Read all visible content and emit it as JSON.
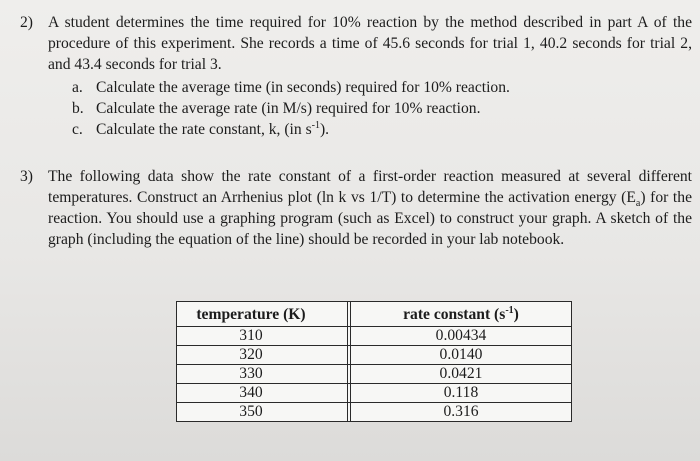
{
  "q2": {
    "number": "2)",
    "intro": "A student determines the time required for 10% reaction by the method described in part A of the procedure of this experiment. She records a time of 45.6 seconds for trial 1, 40.2 seconds for trial 2, and 43.4 seconds for trial 3.",
    "parts": [
      {
        "label": "a.",
        "text": "Calculate the average time (in seconds) required for 10% reaction."
      },
      {
        "label": "b.",
        "text": "Calculate the average rate (in M/s) required for 10% reaction."
      },
      {
        "label": "c.",
        "text_before": "Calculate the rate constant, k, (in s",
        "sup": "-1",
        "text_after": ")."
      }
    ]
  },
  "q3": {
    "number": "3)",
    "text_before": "The following data show the rate constant of a first-order reaction measured at several different temperatures. Construct an Arrhenius plot (ln k vs 1/T) to determine the activation energy (E",
    "sub": "a",
    "text_after": ") for the reaction. You should use a graphing program (such as Excel) to construct your graph. A sketch of the graph (including the equation of the line) should be recorded in your lab notebook."
  },
  "table": {
    "header_temp": "temperature (K)",
    "header_rate_before": "rate constant (s",
    "header_rate_sup": "-1",
    "header_rate_after": ")",
    "rows": [
      {
        "temp": "310",
        "rate": "0.00434"
      },
      {
        "temp": "320",
        "rate": "0.0140"
      },
      {
        "temp": "330",
        "rate": "0.0421"
      },
      {
        "temp": "340",
        "rate": "0.118"
      },
      {
        "temp": "350",
        "rate": "0.316"
      }
    ]
  }
}
